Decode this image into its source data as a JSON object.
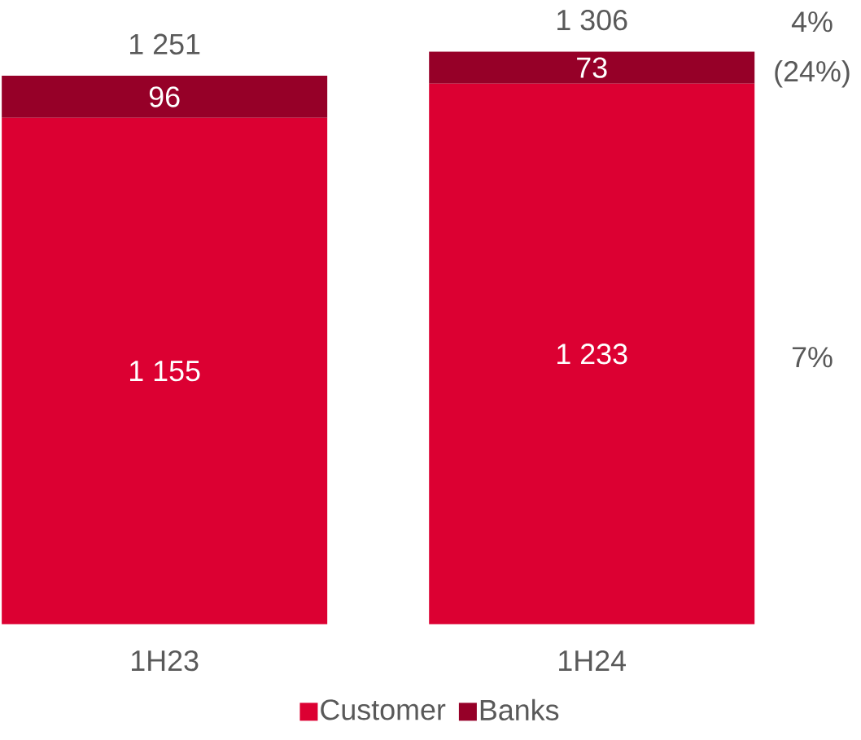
{
  "chart_data": {
    "type": "bar",
    "stacked": true,
    "categories": [
      "1H23",
      "1H24"
    ],
    "series": [
      {
        "name": "Customer",
        "color": "#dc0032",
        "values": [
          1155,
          1233
        ],
        "value_labels": [
          "1 155",
          "1 233"
        ]
      },
      {
        "name": "Banks",
        "color": "#960028",
        "values": [
          96,
          73
        ],
        "value_labels": [
          "96",
          "73"
        ]
      }
    ],
    "totals": [
      "1 251",
      "1 306"
    ],
    "annotations": [
      "4%",
      "(24%)",
      "7%"
    ],
    "legend": "bottom"
  }
}
